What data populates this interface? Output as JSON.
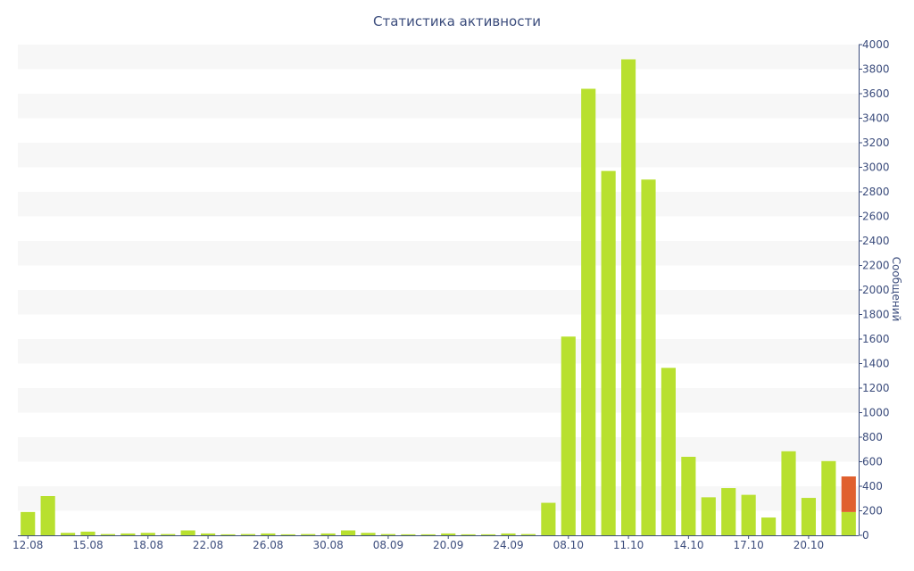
{
  "chart_data": {
    "type": "bar",
    "title": "Статистика активности",
    "xlabel": "",
    "ylabel": "Сообщений",
    "ylim": [
      0,
      4000
    ],
    "yticks": [
      0,
      200,
      400,
      600,
      800,
      1000,
      1200,
      1400,
      1600,
      1800,
      2000,
      2200,
      2400,
      2600,
      2800,
      3000,
      3200,
      3400,
      3600,
      3800,
      4000
    ],
    "y_axis_position": "right",
    "grid": "horizontal alternating bands",
    "xtick_labels": [
      "12.08",
      "15.08",
      "18.08",
      "22.08",
      "26.08",
      "30.08",
      "08.09",
      "20.09",
      "24.09",
      "08.10",
      "11.10",
      "14.10",
      "17.10",
      "20.10"
    ],
    "xtick_bar_index": [
      0,
      3,
      6,
      9,
      12,
      15,
      18,
      21,
      24,
      27,
      30,
      33,
      36,
      39
    ],
    "series": [
      {
        "color": "#b8e02f",
        "values": [
          190,
          320,
          20,
          30,
          10,
          15,
          20,
          10,
          40,
          15,
          8,
          10,
          15,
          8,
          10,
          15,
          40,
          20,
          10,
          8,
          8,
          15,
          8,
          8,
          15,
          10,
          265,
          1620,
          3640,
          2970,
          3880,
          2900,
          1365,
          640,
          310,
          385,
          330,
          145,
          685,
          305,
          605,
          190
        ]
      },
      {
        "color": "#e0602f",
        "values": [
          0,
          0,
          0,
          0,
          0,
          0,
          0,
          0,
          0,
          0,
          0,
          0,
          0,
          0,
          0,
          0,
          0,
          0,
          0,
          0,
          0,
          0,
          0,
          0,
          0,
          0,
          0,
          0,
          0,
          0,
          0,
          0,
          0,
          0,
          0,
          0,
          0,
          0,
          0,
          0,
          0,
          290
        ]
      }
    ],
    "colors": {
      "band": "#f7f7f7",
      "axis": "#3b4c7c",
      "text": "#3b4c7c"
    }
  }
}
